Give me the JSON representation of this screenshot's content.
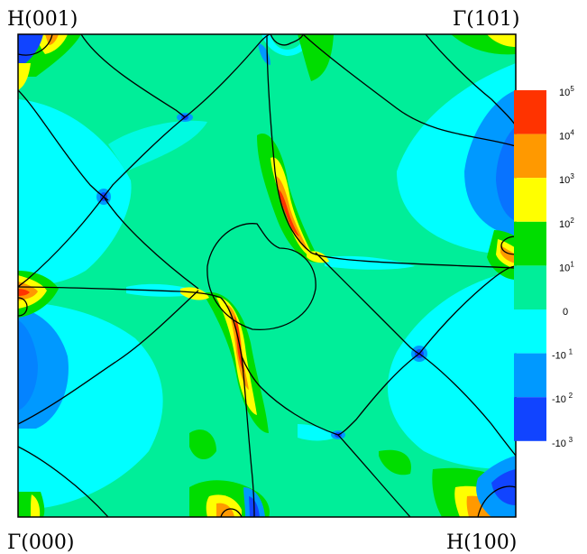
{
  "corners": {
    "top_left": "H(001)",
    "top_right": "Γ(101)",
    "bottom_left": "Γ(000)",
    "bottom_right": "H(100)"
  },
  "colorbar": {
    "levels": [
      {
        "base": "10",
        "exp": "5",
        "color": "#ff3300"
      },
      {
        "base": "10",
        "exp": "4",
        "color": "#ff9900"
      },
      {
        "base": "10",
        "exp": "3",
        "color": "#ffff00"
      },
      {
        "base": "10",
        "exp": "2",
        "color": "#00dd00"
      },
      {
        "base": "10",
        "exp": "1",
        "color": "#00ee99"
      },
      {
        "base": "0",
        "exp": "",
        "color": "#00ffff"
      },
      {
        "base": "-10",
        "exp": "1",
        "color": "#0099ff"
      },
      {
        "base": "-10",
        "exp": "2",
        "color": "#1144ff"
      },
      {
        "base": "-10",
        "exp": "3",
        "color": ""
      }
    ]
  },
  "colors": {
    "background_fill": "#00ee99",
    "cyan_region": "#00ffff",
    "light_blue_region": "#0099ff",
    "dark_blue_region": "#1144ff",
    "green_region": "#00dd00",
    "yellow_region": "#ffff00",
    "orange_region": "#ff9900",
    "red_region": "#ff3300",
    "line_color": "#000000"
  }
}
